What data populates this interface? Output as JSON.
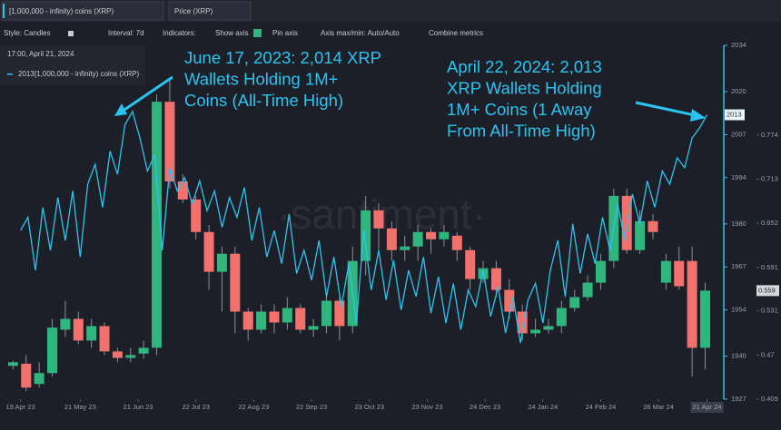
{
  "ui": {
    "toolbar": {
      "style": "Style: Candles",
      "interval": "Interval: 7d",
      "indicators": "Indicators:",
      "show_axis": "Show axis",
      "pin_axis": "Pin axis",
      "axis_minmax": "Axis max/min: Auto/Auto",
      "combine": "Combine metrics"
    },
    "tooltip": {
      "time": "17:00, April 21, 2024"
    },
    "watermark": "·santiment·"
  },
  "chart_data": [
    {
      "type": "line",
      "name": "[1,000,000 - infinity) coins (XRP)",
      "color": "#2bc4f0",
      "xlim": [
        -11,
        376
      ],
      "xticks": [
        {
          "value": 0,
          "label": "19 Apr 23"
        },
        {
          "value": 32,
          "label": "21 May 23"
        },
        {
          "value": 63,
          "label": "21 Jun 23"
        },
        {
          "value": 94,
          "label": "22 Jul 23"
        },
        {
          "value": 125,
          "label": "22 Aug 23"
        },
        {
          "value": 156,
          "label": "22 Sep 23"
        },
        {
          "value": 187,
          "label": "23 Oct 23"
        },
        {
          "value": 218,
          "label": "23 Nov 23"
        },
        {
          "value": 249,
          "label": "24 Dec 23"
        },
        {
          "value": 280,
          "label": "24 Jan 24"
        },
        {
          "value": 311,
          "label": "24 Feb 24"
        },
        {
          "value": 342,
          "label": "26 Mar 24"
        },
        {
          "value": 368,
          "label": "21 Apr 24"
        }
      ],
      "ylim": [
        1927,
        2034
      ],
      "yticks": [
        1927,
        1940,
        1954,
        1967,
        1980,
        1994,
        2007,
        2020,
        2034
      ],
      "x": [
        0,
        4,
        8,
        12,
        16,
        20,
        24,
        28,
        32,
        36,
        40,
        44,
        48,
        52,
        56,
        60,
        64,
        68,
        72,
        76,
        80,
        84,
        88,
        92,
        96,
        100,
        104,
        108,
        112,
        116,
        120,
        124,
        128,
        132,
        136,
        140,
        144,
        148,
        152,
        156,
        160,
        164,
        168,
        172,
        176,
        180,
        184,
        188,
        192,
        196,
        200,
        204,
        208,
        212,
        216,
        220,
        224,
        228,
        232,
        236,
        240,
        244,
        248,
        252,
        256,
        260,
        264,
        268,
        272,
        276,
        280,
        284,
        288,
        292,
        296,
        300,
        304,
        308,
        312,
        316,
        320,
        324,
        328,
        332,
        336,
        340,
        344,
        348,
        352,
        356,
        360,
        364,
        368
      ],
      "values": [
        1978,
        1982,
        1966,
        1985,
        1972,
        1988,
        1975,
        1990,
        1970,
        1992,
        1998,
        1985,
        2002,
        1995,
        2010,
        2014,
        2006,
        1996,
        2001,
        1972,
        1997,
        1990,
        1994,
        1986,
        1993,
        1984,
        1990,
        1979,
        1988,
        1982,
        1991,
        1975,
        1985,
        1970,
        1978,
        1968,
        1983,
        1965,
        1972,
        1963,
        1975,
        1958,
        1970,
        1955,
        1968,
        1950,
        1978,
        1960,
        1972,
        1957,
        1969,
        1954,
        1966,
        1958,
        1970,
        1953,
        1964,
        1950,
        1962,
        1948,
        1960,
        1955,
        1966,
        1952,
        1961,
        1947,
        1958,
        1944,
        1957,
        1962,
        1950,
        1966,
        1975,
        1958,
        1980,
        1965,
        1977,
        1968,
        1982,
        1972,
        1986,
        1975,
        1989,
        1980,
        1993,
        1985,
        1996,
        1992,
        2000,
        1997,
        2006,
        2009,
        2013
      ],
      "annotations": [
        {
          "lines": [
            "June 17, 2023: 2,014 XRP",
            "Wallets Holding 1M+",
            "Coins (All-Time High)"
          ]
        },
        {
          "lines": [
            "April 22, 2024: 2,013",
            "XRP Wallets Holding",
            "1M+ Coins (1 Away",
            "From All-Time High)"
          ]
        }
      ]
    },
    {
      "type": "candlestick",
      "name": "Price (XRP)",
      "up_color": "#2fb67c",
      "down_color": "#f2716c",
      "ylim": [
        0.409,
        0.898
      ],
      "yticks": [
        0.409,
        0.47,
        0.531,
        0.591,
        0.652,
        0.713,
        0.774
      ],
      "x": [
        -4,
        3,
        10,
        17,
        24,
        31,
        38,
        45,
        52,
        59,
        66,
        73,
        80,
        87,
        94,
        101,
        108,
        115,
        122,
        129,
        136,
        143,
        150,
        157,
        164,
        171,
        178,
        185,
        192,
        199,
        206,
        213,
        220,
        227,
        234,
        241,
        248,
        255,
        262,
        269,
        276,
        283,
        290,
        297,
        304,
        311,
        318,
        325,
        332,
        339,
        346,
        353,
        360,
        367
      ],
      "open": [
        0.455,
        0.458,
        0.43,
        0.445,
        0.505,
        0.52,
        0.49,
        0.51,
        0.475,
        0.466,
        0.472,
        0.48,
        0.82,
        0.71,
        0.685,
        0.64,
        0.585,
        0.61,
        0.53,
        0.505,
        0.53,
        0.515,
        0.535,
        0.505,
        0.51,
        0.545,
        0.51,
        0.6,
        0.67,
        0.645,
        0.615,
        0.62,
        0.64,
        0.63,
        0.635,
        0.615,
        0.575,
        0.59,
        0.56,
        0.53,
        0.5,
        0.505,
        0.51,
        0.535,
        0.55,
        0.57,
        0.6,
        0.69,
        0.615,
        0.655,
        0.57,
        0.6,
        0.6,
        0.48
      ],
      "high": [
        0.462,
        0.47,
        0.46,
        0.52,
        0.545,
        0.53,
        0.52,
        0.515,
        0.48,
        0.48,
        0.49,
        0.83,
        0.85,
        0.72,
        0.69,
        0.65,
        0.62,
        0.62,
        0.535,
        0.54,
        0.54,
        0.55,
        0.54,
        0.52,
        0.555,
        0.55,
        0.62,
        0.69,
        0.68,
        0.655,
        0.635,
        0.65,
        0.645,
        0.65,
        0.64,
        0.62,
        0.6,
        0.6,
        0.575,
        0.54,
        0.52,
        0.52,
        0.545,
        0.56,
        0.58,
        0.61,
        0.7,
        0.7,
        0.67,
        0.665,
        0.61,
        0.62,
        0.62,
        0.57
      ],
      "low": [
        0.45,
        0.42,
        0.425,
        0.44,
        0.495,
        0.485,
        0.48,
        0.47,
        0.46,
        0.46,
        0.465,
        0.47,
        0.7,
        0.68,
        0.63,
        0.56,
        0.53,
        0.5,
        0.49,
        0.5,
        0.5,
        0.505,
        0.5,
        0.495,
        0.5,
        0.49,
        0.5,
        0.58,
        0.61,
        0.6,
        0.6,
        0.6,
        0.61,
        0.62,
        0.6,
        0.56,
        0.57,
        0.55,
        0.52,
        0.49,
        0.495,
        0.5,
        0.5,
        0.53,
        0.545,
        0.56,
        0.59,
        0.61,
        0.61,
        0.63,
        0.56,
        0.56,
        0.44,
        0.45
      ],
      "close": [
        0.46,
        0.425,
        0.445,
        0.508,
        0.52,
        0.49,
        0.51,
        0.475,
        0.466,
        0.47,
        0.48,
        0.82,
        0.71,
        0.685,
        0.64,
        0.585,
        0.61,
        0.53,
        0.505,
        0.53,
        0.515,
        0.535,
        0.505,
        0.51,
        0.545,
        0.51,
        0.6,
        0.67,
        0.645,
        0.615,
        0.62,
        0.64,
        0.63,
        0.64,
        0.615,
        0.575,
        0.59,
        0.56,
        0.53,
        0.5,
        0.505,
        0.51,
        0.535,
        0.55,
        0.57,
        0.6,
        0.69,
        0.615,
        0.655,
        0.64,
        0.6,
        0.565,
        0.48,
        0.559
      ]
    }
  ]
}
